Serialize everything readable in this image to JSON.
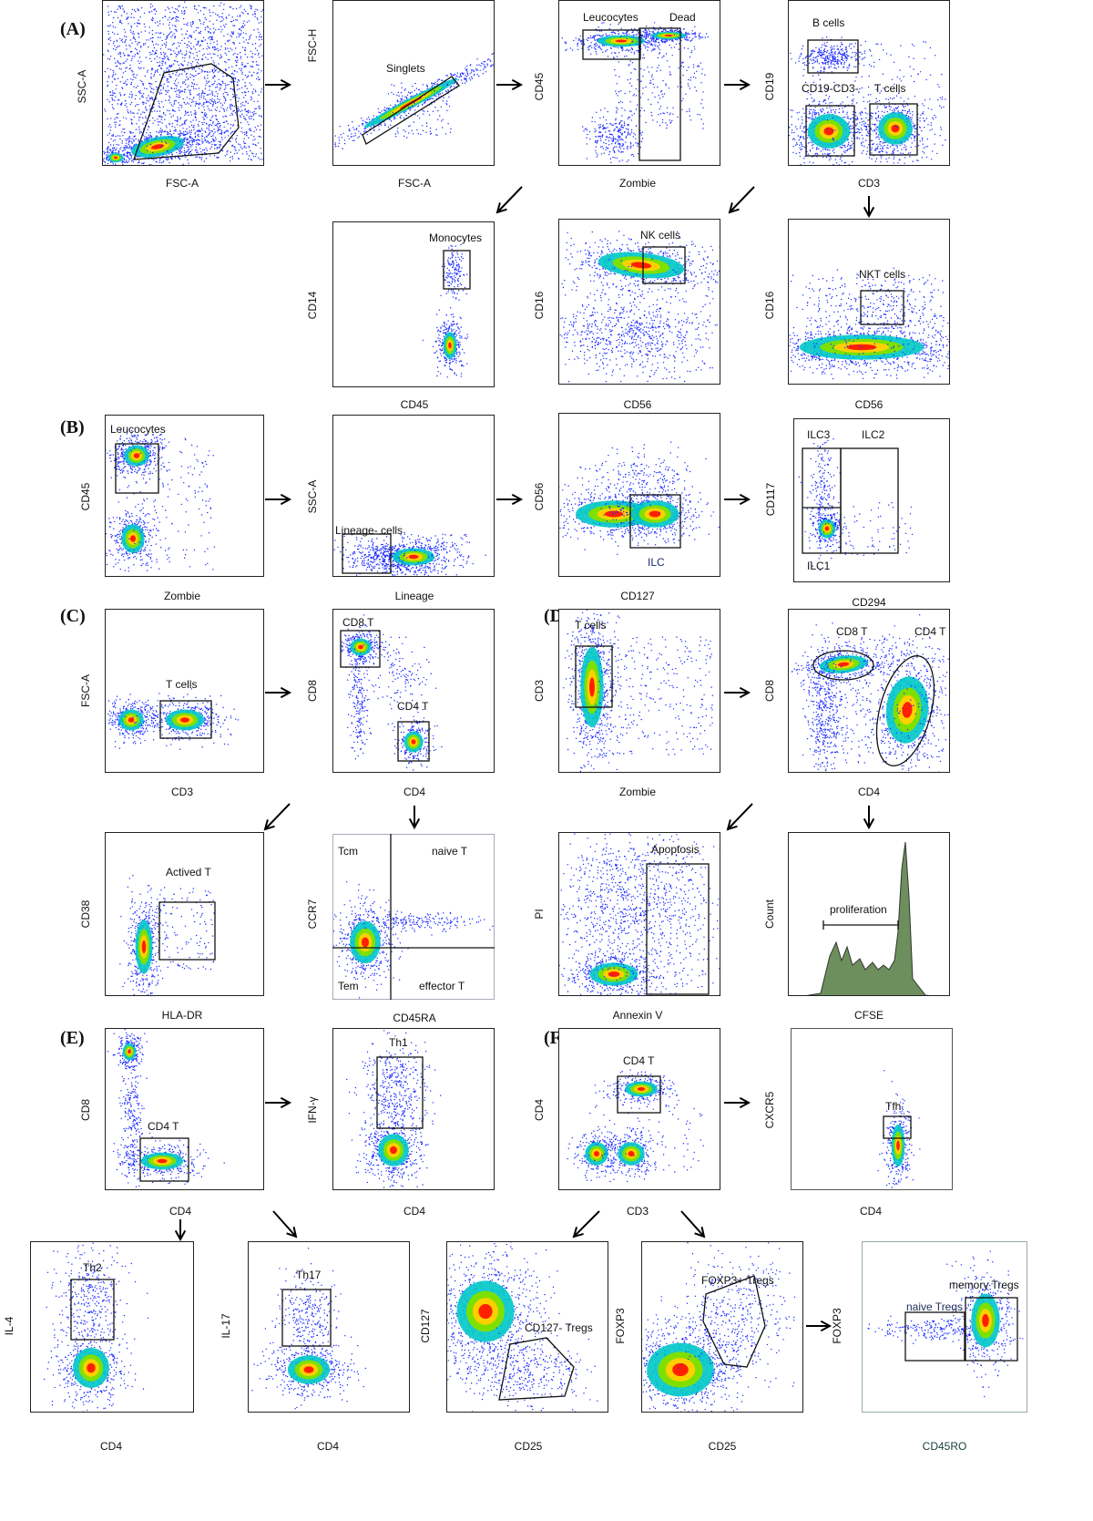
{
  "sections": [
    "(A)",
    "(B)",
    "(C)",
    "(D)",
    "(E)",
    "(F)"
  ],
  "panels": [
    {
      "id": "a1",
      "x": "FSC-A",
      "y": "SSC-A",
      "gates": []
    },
    {
      "id": "a2",
      "x": "FSC-A",
      "y": "FSC-H",
      "gates": [
        "Singlets"
      ]
    },
    {
      "id": "a3",
      "x": "Zombie",
      "y": "CD45",
      "gates": [
        "Leucocytes",
        "Dead"
      ]
    },
    {
      "id": "a4",
      "x": "CD3",
      "y": "CD19",
      "gates": [
        "B cells",
        "CD19-CD3-",
        "T cells"
      ]
    },
    {
      "id": "a5",
      "x": "CD45",
      "y": "CD14",
      "gates": [
        "Monocytes"
      ]
    },
    {
      "id": "a6",
      "x": "CD56",
      "y": "CD16",
      "gates": [
        "NK cells"
      ]
    },
    {
      "id": "a7",
      "x": "CD56",
      "y": "CD16",
      "gates": [
        "NKT cells"
      ]
    },
    {
      "id": "b1",
      "x": "Zombie",
      "y": "CD45",
      "gates": [
        "Leucocytes"
      ]
    },
    {
      "id": "b2",
      "x": "Lineage",
      "y": "SSC-A",
      "gates": [
        "Lineage- cells"
      ]
    },
    {
      "id": "b3",
      "x": "CD127",
      "y": "CD56",
      "gates": [
        "ILC"
      ]
    },
    {
      "id": "b4",
      "x": "CD294",
      "y": "CD117",
      "gates": [
        "ILC3",
        "ILC2",
        "ILC1"
      ]
    },
    {
      "id": "c1",
      "x": "CD3",
      "y": "FSC-A",
      "gates": [
        "T cells"
      ]
    },
    {
      "id": "c2",
      "x": "CD4",
      "y": "CD8",
      "gates": [
        "CD8 T",
        "CD4 T"
      ]
    },
    {
      "id": "d1",
      "x": "Zombie",
      "y": "CD3",
      "gates": [
        "T cells"
      ]
    },
    {
      "id": "d2",
      "x": "CD4",
      "y": "CD8",
      "gates": [
        "CD8 T",
        "CD4 T"
      ]
    },
    {
      "id": "c3",
      "x": "HLA-DR",
      "y": "CD38",
      "gates": [
        "Actived T"
      ]
    },
    {
      "id": "c4",
      "x": "CD45RA",
      "y": "CCR7",
      "gates": [
        "Tcm",
        "naive T",
        "Tem",
        "effector T"
      ]
    },
    {
      "id": "d3",
      "x": "Annexin V",
      "y": "PI",
      "gates": [
        "Apoptosis"
      ]
    },
    {
      "id": "d4",
      "x": "CFSE",
      "y": "Count",
      "gates": [
        "proliferation"
      ]
    },
    {
      "id": "e1",
      "x": "CD4",
      "y": "CD8",
      "gates": [
        "CD4 T"
      ]
    },
    {
      "id": "e2",
      "x": "CD4",
      "y": "IFN-γ",
      "gates": [
        "Th1"
      ]
    },
    {
      "id": "f1",
      "x": "CD3",
      "y": "CD4",
      "gates": [
        "CD4 T"
      ]
    },
    {
      "id": "f2",
      "x": "CD4",
      "y": "CXCR5",
      "gates": [
        "Tfh"
      ]
    },
    {
      "id": "e3",
      "x": "CD4",
      "y": "IL-4",
      "gates": [
        "Th2"
      ]
    },
    {
      "id": "e4",
      "x": "CD4",
      "y": "IL-17",
      "gates": [
        "Th17"
      ]
    },
    {
      "id": "f3",
      "x": "CD25",
      "y": "CD127",
      "gates": [
        "CD127- Tregs"
      ]
    },
    {
      "id": "f4",
      "x": "CD25",
      "y": "FOXP3",
      "gates": [
        "FOXP3+ Tregs"
      ]
    },
    {
      "id": "f5",
      "x": "CD45RO",
      "y": "FOXP3",
      "gates": [
        "naive Tregs",
        "memory Tregs"
      ]
    }
  ],
  "colors": {
    "low": "#1a2bff",
    "mid": "#00c8c8",
    "midhigh": "#7ee000",
    "high": "#ffd000",
    "peak": "#ff2000",
    "hist": "#6d8f5d"
  }
}
